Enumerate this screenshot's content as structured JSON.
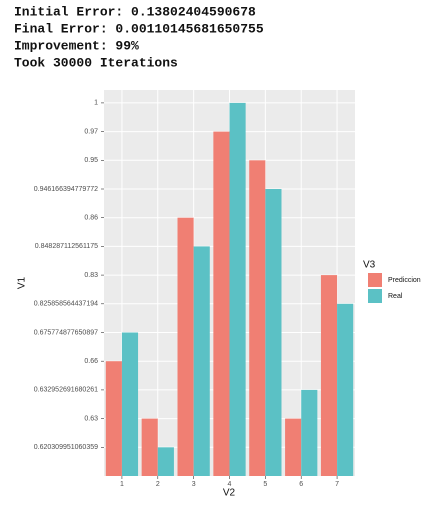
{
  "header": {
    "lines": [
      "Initial Error: 0.13802404590678",
      "Final Error: 0.00110145681650755",
      "Improvement: 99%",
      "Took 30000 Iterations"
    ]
  },
  "chart_data": {
    "type": "bar",
    "x_label": "V2",
    "y_label": "V1",
    "legend_title": "V3",
    "categories": [
      "1",
      "2",
      "3",
      "4",
      "5",
      "6",
      "7"
    ],
    "series": [
      {
        "name": "Prediccion",
        "color": "#f07f73",
        "values": [
          0.66,
          0.63,
          0.86,
          0.97,
          0.95,
          0.63,
          0.83
        ]
      },
      {
        "name": "Real",
        "color": "#5bc1c5",
        "values": [
          0.675774877650897,
          0.620309951060359,
          0.848287112561175,
          1,
          0.946166394779772,
          0.632952691680261,
          0.825858564437194
        ]
      }
    ],
    "yticks": [
      0.620309951060359,
      0.63,
      0.632952691680261,
      0.66,
      0.675774877650897,
      0.825858564437194,
      0.83,
      0.848287112561175,
      0.86,
      0.946166394779772,
      0.95,
      0.97,
      1
    ],
    "grid": true
  }
}
